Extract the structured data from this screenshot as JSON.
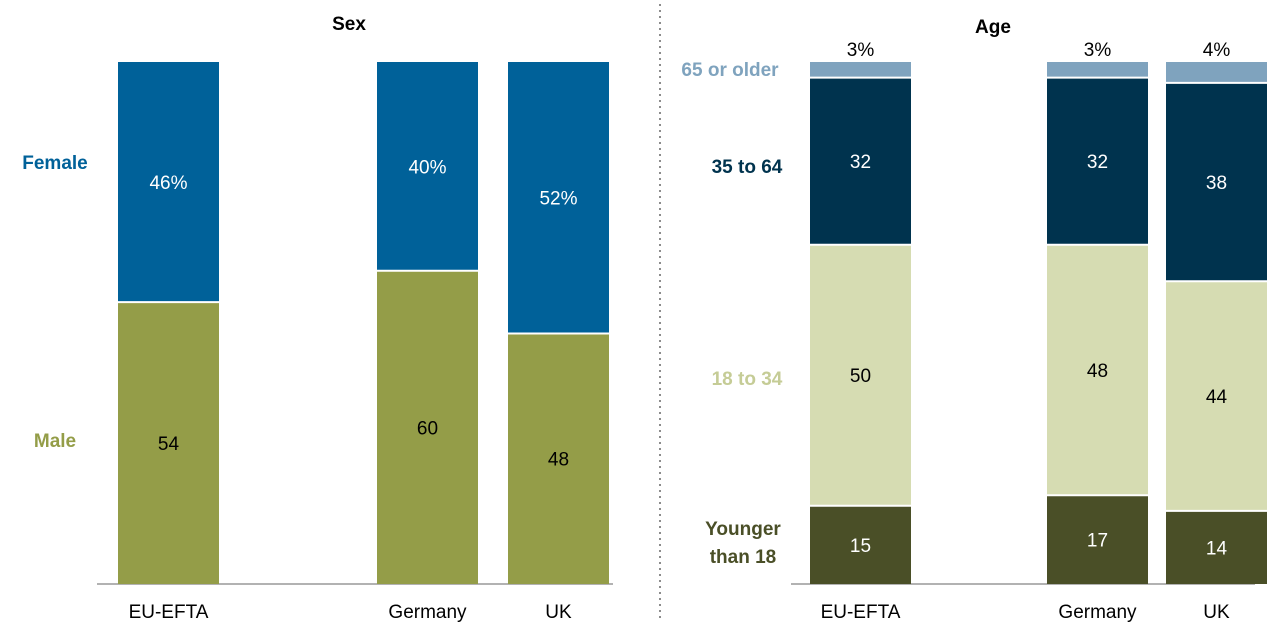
{
  "chart_data": [
    {
      "type": "bar",
      "stacked": true,
      "title": "Sex",
      "categories": [
        "EU-EFTA",
        "Germany",
        "UK"
      ],
      "series": [
        {
          "name": "Male",
          "values": [
            54,
            60,
            48
          ],
          "labels": [
            "54",
            "60",
            "48"
          ],
          "color": "#949d48"
        },
        {
          "name": "Female",
          "values": [
            46,
            40,
            52
          ],
          "labels": [
            "46%",
            "40%",
            "52%"
          ],
          "color": "#006199"
        }
      ],
      "ylim": [
        0,
        100
      ],
      "grid": false,
      "legend": "left"
    },
    {
      "type": "bar",
      "stacked": true,
      "title": "Age",
      "categories": [
        "EU-EFTA",
        "Germany",
        "UK"
      ],
      "series": [
        {
          "name": "Younger than 18",
          "values": [
            15,
            17,
            14
          ],
          "labels": [
            "15",
            "17",
            "14"
          ],
          "color": "#4a4f27"
        },
        {
          "name": "18 to 34",
          "values": [
            50,
            48,
            44
          ],
          "labels": [
            "50",
            "48",
            "44"
          ],
          "color": "#d6dcb2"
        },
        {
          "name": "35 to 64",
          "values": [
            32,
            32,
            38
          ],
          "labels": [
            "32",
            "32",
            "38"
          ],
          "color": "#00334e"
        },
        {
          "name": "65 or older",
          "values": [
            3,
            3,
            4
          ],
          "labels": [
            "3%",
            "3%",
            "4%"
          ],
          "color": "#7fa3be"
        }
      ],
      "ylim": [
        0,
        100
      ],
      "grid": false,
      "legend": "left"
    }
  ]
}
